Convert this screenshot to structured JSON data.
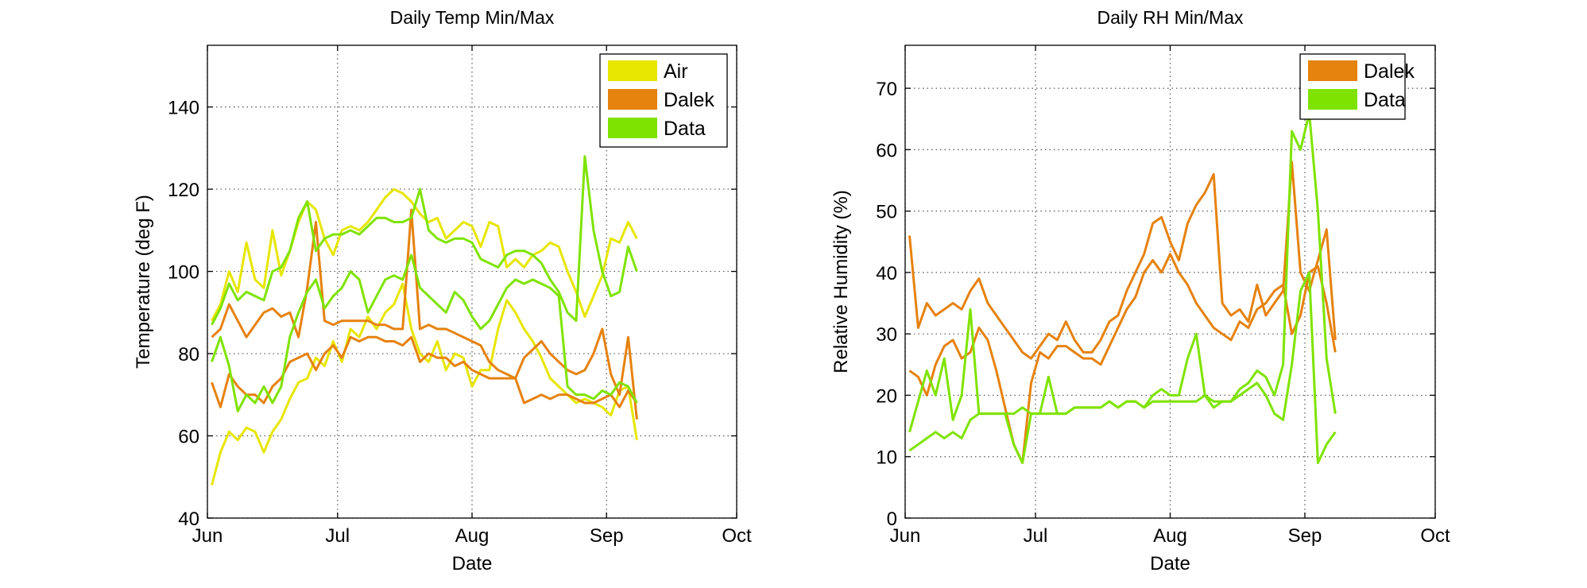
{
  "chart_data": [
    {
      "type": "line",
      "title": "Daily Temp Min/Max",
      "xlabel": "Date",
      "ylabel": "Temperature (deg F)",
      "x_axis": {
        "type": "date",
        "range": [
          "Jun",
          "Oct"
        ],
        "ticks": [
          "Jun",
          "Jul",
          "Aug",
          "Sep",
          "Oct"
        ]
      },
      "ylim": [
        40,
        155
      ],
      "yticks": [
        40,
        60,
        80,
        100,
        120,
        140
      ],
      "grid": true,
      "legend": {
        "placement": "top-right",
        "entries": [
          "Air",
          "Dalek",
          "Data"
        ]
      },
      "series": [
        {
          "name": "Air",
          "role": "max",
          "color": "#e6e600",
          "x": [
            1,
            3,
            5,
            7,
            9,
            11,
            13,
            15,
            17,
            19,
            21,
            23,
            25,
            27,
            29,
            31,
            33,
            35,
            37,
            39,
            41,
            43,
            45,
            47,
            49,
            51,
            53,
            55,
            57,
            59,
            61,
            63,
            65,
            67,
            69,
            71,
            73,
            75,
            77,
            79,
            81,
            83,
            85,
            87,
            89,
            91,
            93,
            95,
            97,
            99
          ],
          "y": [
            88,
            92,
            100,
            95,
            107,
            98,
            96,
            110,
            99,
            105,
            112,
            117,
            115,
            108,
            104,
            110,
            111,
            110,
            112,
            115,
            118,
            120,
            119,
            117,
            114,
            112,
            113,
            108,
            110,
            112,
            111,
            106,
            112,
            111,
            101,
            103,
            101,
            104,
            105,
            107,
            106,
            100,
            95,
            89,
            94,
            99,
            108,
            107,
            112,
            108
          ]
        },
        {
          "name": "Air",
          "role": "min",
          "color": "#e6e600",
          "x": [
            1,
            3,
            5,
            7,
            9,
            11,
            13,
            15,
            17,
            19,
            21,
            23,
            25,
            27,
            29,
            31,
            33,
            35,
            37,
            39,
            41,
            43,
            45,
            47,
            49,
            51,
            53,
            55,
            57,
            59,
            61,
            63,
            65,
            67,
            69,
            71,
            73,
            75,
            77,
            79,
            81,
            83,
            85,
            87,
            89,
            91,
            93,
            95,
            97,
            99
          ],
          "y": [
            48,
            56,
            61,
            59,
            62,
            61,
            56,
            61,
            64,
            69,
            73,
            74,
            79,
            77,
            83,
            78,
            86,
            84,
            89,
            86,
            90,
            92,
            97,
            86,
            80,
            78,
            83,
            76,
            80,
            79,
            72,
            76,
            76,
            86,
            93,
            90,
            86,
            83,
            79,
            74,
            72,
            70,
            68,
            69,
            68,
            67,
            65,
            71,
            72,
            59
          ]
        },
        {
          "name": "Dalek",
          "role": "max",
          "color": "#e6820e",
          "x": [
            1,
            3,
            5,
            7,
            9,
            11,
            13,
            15,
            17,
            19,
            21,
            23,
            25,
            27,
            29,
            31,
            33,
            35,
            37,
            39,
            41,
            43,
            45,
            47,
            49,
            51,
            53,
            55,
            57,
            59,
            61,
            63,
            65,
            67,
            69,
            71,
            73,
            75,
            77,
            79,
            81,
            83,
            85,
            87,
            89,
            91,
            93,
            95,
            97,
            99
          ],
          "y": [
            84,
            86,
            92,
            88,
            84,
            87,
            90,
            91,
            89,
            90,
            84,
            96,
            112,
            88,
            87,
            88,
            88,
            88,
            88,
            87,
            87,
            86,
            86,
            115,
            86,
            87,
            86,
            86,
            85,
            84,
            83,
            82,
            78,
            76,
            75,
            74,
            79,
            81,
            83,
            80,
            78,
            76,
            75,
            76,
            80,
            86,
            75,
            70,
            84,
            64
          ]
        },
        {
          "name": "Dalek",
          "role": "min",
          "color": "#e6820e",
          "x": [
            1,
            3,
            5,
            7,
            9,
            11,
            13,
            15,
            17,
            19,
            21,
            23,
            25,
            27,
            29,
            31,
            33,
            35,
            37,
            39,
            41,
            43,
            45,
            47,
            49,
            51,
            53,
            55,
            57,
            59,
            61,
            63,
            65,
            67,
            69,
            71,
            73,
            75,
            77,
            79,
            81,
            83,
            85,
            87,
            89,
            91,
            93,
            95,
            97,
            99
          ],
          "y": [
            73,
            67,
            75,
            72,
            70,
            70,
            68,
            72,
            74,
            78,
            79,
            80,
            76,
            80,
            82,
            79,
            84,
            83,
            84,
            84,
            83,
            83,
            82,
            84,
            78,
            80,
            79,
            79,
            77,
            78,
            76,
            75,
            74,
            74,
            74,
            74,
            68,
            69,
            70,
            69,
            70,
            70,
            69,
            68,
            68,
            69,
            70,
            67,
            71,
            68
          ]
        },
        {
          "name": "Data",
          "role": "max",
          "color": "#7fe300",
          "x": [
            1,
            3,
            5,
            7,
            9,
            11,
            13,
            15,
            17,
            19,
            21,
            23,
            25,
            27,
            29,
            31,
            33,
            35,
            37,
            39,
            41,
            43,
            45,
            47,
            49,
            51,
            53,
            55,
            57,
            59,
            61,
            63,
            65,
            67,
            69,
            71,
            73,
            75,
            77,
            79,
            81,
            83,
            85,
            87,
            89,
            91,
            93,
            95,
            97,
            99
          ],
          "y": [
            87,
            91,
            97,
            93,
            95,
            94,
            93,
            100,
            101,
            105,
            113,
            117,
            105,
            108,
            109,
            109,
            110,
            109,
            111,
            113,
            113,
            112,
            112,
            113,
            120,
            110,
            108,
            107,
            108,
            108,
            107,
            103,
            102,
            101,
            104,
            105,
            105,
            104,
            102,
            98,
            95,
            90,
            88,
            128,
            110,
            100,
            94,
            95,
            106,
            100
          ]
        },
        {
          "name": "Data",
          "role": "min",
          "color": "#7fe300",
          "x": [
            1,
            3,
            5,
            7,
            9,
            11,
            13,
            15,
            17,
            19,
            21,
            23,
            25,
            27,
            29,
            31,
            33,
            35,
            37,
            39,
            41,
            43,
            45,
            47,
            49,
            51,
            53,
            55,
            57,
            59,
            61,
            63,
            65,
            67,
            69,
            71,
            73,
            75,
            77,
            79,
            81,
            83,
            85,
            87,
            89,
            91,
            93,
            95,
            97,
            99
          ],
          "y": [
            78,
            84,
            77,
            66,
            70,
            68,
            72,
            68,
            72,
            84,
            90,
            95,
            98,
            91,
            94,
            96,
            100,
            98,
            90,
            94,
            98,
            99,
            98,
            104,
            96,
            94,
            92,
            90,
            95,
            93,
            89,
            86,
            88,
            92,
            96,
            98,
            97,
            98,
            97,
            96,
            94,
            72,
            70,
            70,
            69,
            71,
            70,
            73,
            72,
            68
          ]
        }
      ]
    },
    {
      "type": "line",
      "title": "Daily RH Min/Max",
      "xlabel": "Date",
      "ylabel": "Relative Humidity (%)",
      "x_axis": {
        "type": "date",
        "range": [
          "Jun",
          "Oct"
        ],
        "ticks": [
          "Jun",
          "Jul",
          "Aug",
          "Sep",
          "Oct"
        ]
      },
      "ylim": [
        0,
        77
      ],
      "yticks": [
        0,
        10,
        20,
        30,
        40,
        50,
        60,
        70
      ],
      "grid": true,
      "legend": {
        "placement": "top-right",
        "entries": [
          "Dalek",
          "Data"
        ]
      },
      "series": [
        {
          "name": "Dalek",
          "role": "max",
          "color": "#e6820e",
          "x": [
            1,
            3,
            5,
            7,
            9,
            11,
            13,
            15,
            17,
            19,
            21,
            23,
            25,
            27,
            29,
            31,
            33,
            35,
            37,
            39,
            41,
            43,
            45,
            47,
            49,
            51,
            53,
            55,
            57,
            59,
            61,
            63,
            65,
            67,
            69,
            71,
            73,
            75,
            77,
            79,
            81,
            83,
            85,
            87,
            89,
            91,
            93,
            95,
            97,
            99
          ],
          "y": [
            46,
            31,
            35,
            33,
            34,
            35,
            34,
            37,
            39,
            35,
            33,
            31,
            29,
            27,
            26,
            28,
            30,
            29,
            32,
            29,
            27,
            27,
            29,
            32,
            33,
            37,
            40,
            43,
            48,
            49,
            45,
            42,
            48,
            51,
            53,
            56,
            35,
            33,
            34,
            32,
            38,
            33,
            35,
            37,
            58,
            40,
            37,
            42,
            47,
            29
          ]
        },
        {
          "name": "Dalek",
          "role": "min",
          "color": "#e6820e",
          "x": [
            1,
            3,
            5,
            7,
            9,
            11,
            13,
            15,
            17,
            19,
            21,
            23,
            25,
            27,
            29,
            31,
            33,
            35,
            37,
            39,
            41,
            43,
            45,
            47,
            49,
            51,
            53,
            55,
            57,
            59,
            61,
            63,
            65,
            67,
            69,
            71,
            73,
            75,
            77,
            79,
            81,
            83,
            85,
            87,
            89,
            91,
            93,
            95,
            97,
            99
          ],
          "y": [
            24,
            23,
            20,
            25,
            28,
            29,
            26,
            27,
            31,
            29,
            24,
            18,
            12,
            9,
            22,
            27,
            26,
            28,
            28,
            27,
            26,
            26,
            25,
            28,
            31,
            34,
            36,
            40,
            42,
            40,
            43,
            40,
            38,
            35,
            33,
            31,
            30,
            29,
            32,
            31,
            34,
            35,
            37,
            38,
            30,
            33,
            40,
            41,
            35,
            27
          ]
        },
        {
          "name": "Data",
          "role": "max",
          "color": "#7fe300",
          "x": [
            1,
            3,
            5,
            7,
            9,
            11,
            13,
            15,
            17,
            19,
            21,
            23,
            25,
            27,
            29,
            31,
            33,
            35,
            37,
            39,
            41,
            43,
            45,
            47,
            49,
            51,
            53,
            55,
            57,
            59,
            61,
            63,
            65,
            67,
            69,
            71,
            73,
            75,
            77,
            79,
            81,
            83,
            85,
            87,
            89,
            91,
            93,
            95,
            97,
            99
          ],
          "y": [
            14,
            19,
            24,
            20,
            26,
            16,
            20,
            34,
            17,
            17,
            17,
            17,
            17,
            18,
            17,
            17,
            23,
            17,
            17,
            18,
            18,
            18,
            18,
            19,
            18,
            19,
            19,
            18,
            20,
            21,
            20,
            20,
            26,
            30,
            20,
            18,
            19,
            19,
            21,
            22,
            24,
            23,
            20,
            25,
            63,
            60,
            66,
            50,
            26,
            17
          ]
        },
        {
          "name": "Data",
          "role": "min",
          "color": "#7fe300",
          "x": [
            1,
            3,
            5,
            7,
            9,
            11,
            13,
            15,
            17,
            19,
            21,
            23,
            25,
            27,
            29,
            31,
            33,
            35,
            37,
            39,
            41,
            43,
            45,
            47,
            49,
            51,
            53,
            55,
            57,
            59,
            61,
            63,
            65,
            67,
            69,
            71,
            73,
            75,
            77,
            79,
            81,
            83,
            85,
            87,
            89,
            91,
            93,
            95,
            97,
            99
          ],
          "y": [
            11,
            12,
            13,
            14,
            13,
            14,
            13,
            16,
            17,
            17,
            17,
            17,
            12,
            9,
            17,
            17,
            17,
            17,
            17,
            18,
            18,
            18,
            18,
            19,
            18,
            19,
            19,
            18,
            19,
            19,
            19,
            19,
            19,
            19,
            20,
            19,
            19,
            19,
            20,
            21,
            22,
            20,
            17,
            16,
            25,
            37,
            40,
            9,
            12,
            14
          ]
        }
      ]
    }
  ]
}
